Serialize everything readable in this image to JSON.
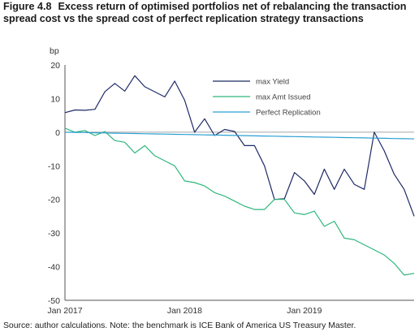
{
  "figure": {
    "number": "Figure 4.8",
    "title": "Excess return of optimised portfolios net of rebalancing the transaction spread cost vs the spread cost of perfect replication strategy transactions",
    "source": "Source: author calculations. Note: the benchmark is ICE Bank of America US Treasury Master."
  },
  "chart_data": {
    "type": "line",
    "title": "",
    "xlabel": "",
    "ylabel": "bp",
    "ylim": [
      -50,
      20
    ],
    "xlim": [
      "2017-01",
      "2019-12"
    ],
    "yticks": [
      20,
      10,
      0,
      -10,
      -20,
      -30,
      -40,
      -50
    ],
    "xticks": [
      {
        "label": "Jan 2017",
        "x": "2017-01"
      },
      {
        "label": "Jan 2018",
        "x": "2018-01"
      },
      {
        "label": "Jan 2019",
        "x": "2019-01"
      }
    ],
    "grid": false,
    "legend_position": "top-right",
    "x": [
      "2017-01",
      "2017-02",
      "2017-03",
      "2017-04",
      "2017-05",
      "2017-06",
      "2017-07",
      "2017-08",
      "2017-09",
      "2017-10",
      "2017-11",
      "2017-12",
      "2018-01",
      "2018-02",
      "2018-03",
      "2018-04",
      "2018-05",
      "2018-06",
      "2018-07",
      "2018-08",
      "2018-09",
      "2018-10",
      "2018-11",
      "2018-12",
      "2019-01",
      "2019-02",
      "2019-03",
      "2019-04",
      "2019-05",
      "2019-06",
      "2019-07",
      "2019-08",
      "2019-09",
      "2019-10",
      "2019-11",
      "2019-12"
    ],
    "series": [
      {
        "name": "max Yield",
        "color": "#1f2a66",
        "values": [
          5.8,
          6.6,
          6.5,
          6.8,
          12.0,
          14.5,
          12.2,
          16.8,
          13.5,
          12.0,
          10.5,
          15.2,
          9.5,
          0.0,
          4.0,
          -1.0,
          0.8,
          0.2,
          -4.0,
          -4.0,
          -10.0,
          -20.0,
          -19.8,
          -12.0,
          -14.5,
          -18.5,
          -11.0,
          -17.0,
          -11.0,
          -15.5,
          -17.0,
          0.0,
          -5.5,
          -12.5,
          -17.0,
          -25.0
        ]
      },
      {
        "name": "max Amt Issued",
        "color": "#2fb67c",
        "values": [
          1.2,
          0.0,
          0.5,
          -1.0,
          0.2,
          -2.5,
          -3.0,
          -6.2,
          -4.0,
          -7.0,
          -8.5,
          -10.0,
          -14.5,
          -15.0,
          -16.0,
          -18.0,
          -19.0,
          -20.5,
          -22.0,
          -23.0,
          -23.0,
          -20.0,
          -20.0,
          -24.0,
          -24.5,
          -23.5,
          -28.0,
          -26.5,
          -31.5,
          -32.0,
          -33.5,
          -35.0,
          -36.5,
          -39.0,
          -42.5,
          -42.0
        ]
      },
      {
        "name": "Perfect Replication",
        "color": "#2b9fd4",
        "values": [
          0.0,
          -0.06,
          -0.11,
          -0.17,
          -0.23,
          -0.29,
          -0.34,
          -0.4,
          -0.46,
          -0.51,
          -0.57,
          -0.63,
          -0.69,
          -0.74,
          -0.8,
          -0.86,
          -0.91,
          -0.97,
          -1.03,
          -1.09,
          -1.14,
          -1.2,
          -1.26,
          -1.31,
          -1.37,
          -1.43,
          -1.49,
          -1.54,
          -1.6,
          -1.66,
          -1.71,
          -1.77,
          -1.83,
          -1.89,
          -1.94,
          -2.0
        ]
      }
    ]
  }
}
